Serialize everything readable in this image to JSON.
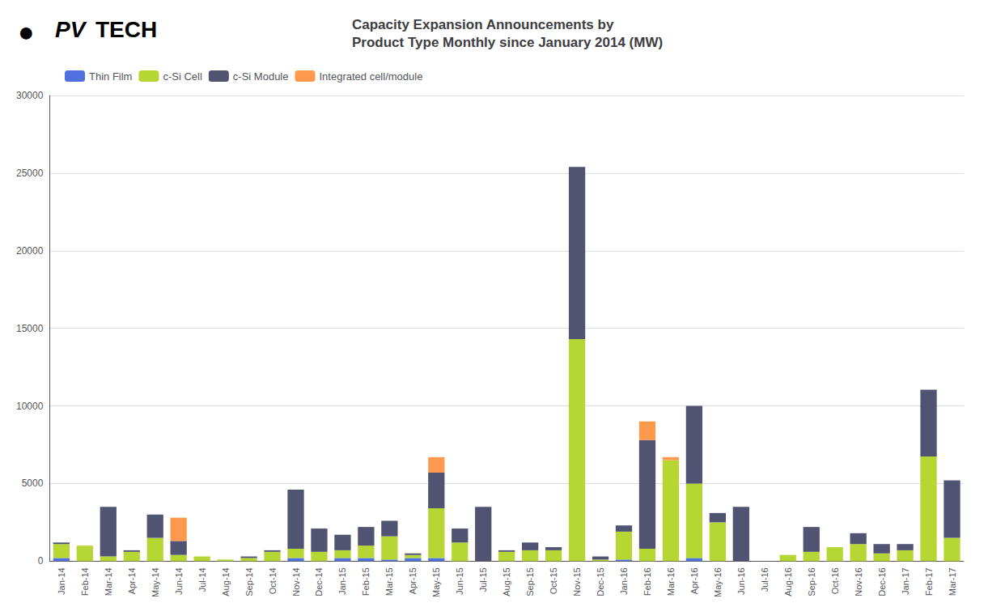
{
  "chart_data": {
    "type": "bar",
    "stacked": true,
    "title": "Capacity Expansion Announcements by\nProduct Type Monthly since January 2014 (MW)",
    "annotations": [
      "●",
      "PV",
      "TECH"
    ],
    "categories": [
      "Jan-14",
      "Feb-14",
      "Mar-14",
      "Apr-14",
      "May-14",
      "Jun-14",
      "Jul-14",
      "Aug-14",
      "Sep-14",
      "Oct-14",
      "Nov-14",
      "Dec-14",
      "Jan-15",
      "Feb-15",
      "Mar-15",
      "Apr-15",
      "May-15",
      "Jun-15",
      "Jul-15",
      "Aug-15",
      "Sep-15",
      "Oct-15",
      "Nov-15",
      "Dec-15",
      "Jan-16",
      "Feb-16",
      "Mar-16",
      "Apr-16",
      "May-16",
      "Jun-16",
      "Jul-16",
      "Aug-16",
      "Sep-16",
      "Oct-16",
      "Nov-16",
      "Dec-16",
      "Jan-17",
      "Feb-17",
      "Mar-17"
    ],
    "series": [
      {
        "name": "Thin Film",
        "values": [
          200,
          0,
          0,
          0,
          0,
          0,
          0,
          0,
          0,
          0,
          200,
          0,
          200,
          200,
          100,
          200,
          200,
          0,
          0,
          0,
          0,
          0,
          0,
          0,
          100,
          0,
          0,
          200,
          0,
          0,
          0,
          0,
          0,
          0,
          0,
          0,
          0,
          0,
          0
        ]
      },
      {
        "name": "c-Si Cell",
        "values": [
          900,
          1000,
          300,
          600,
          1500,
          400,
          300,
          100,
          200,
          600,
          600,
          600,
          500,
          800,
          1500,
          200,
          3200,
          1200,
          0,
          600,
          700,
          700,
          14300,
          100,
          1800,
          800,
          6500,
          4800,
          2500,
          0,
          0,
          400,
          600,
          900,
          1100,
          500,
          700,
          6740,
          1500
        ]
      },
      {
        "name": "c-Si Module",
        "values": [
          100,
          0,
          3200,
          100,
          1500,
          900,
          0,
          0,
          100,
          100,
          3800,
          1500,
          1000,
          1200,
          1000,
          100,
          2300,
          900,
          3500,
          100,
          500,
          200,
          11100,
          200,
          400,
          7000,
          0,
          5000,
          600,
          3500,
          0,
          0,
          1600,
          0,
          700,
          600,
          400,
          4300,
          3700
        ]
      },
      {
        "name": "Integrated cell/module",
        "values": [
          0,
          0,
          0,
          0,
          0,
          1500,
          0,
          0,
          0,
          0,
          0,
          0,
          0,
          0,
          0,
          0,
          1000,
          0,
          0,
          0,
          0,
          0,
          0,
          0,
          0,
          1200,
          200,
          0,
          0,
          0,
          0,
          0,
          0,
          0,
          0,
          0,
          0,
          0,
          0
        ]
      }
    ],
    "ylim": [
      0,
      30000
    ],
    "yticks": [
      0,
      5000,
      10000,
      15000,
      20000,
      25000,
      30000
    ],
    "grid": true,
    "legend": "upper left"
  }
}
